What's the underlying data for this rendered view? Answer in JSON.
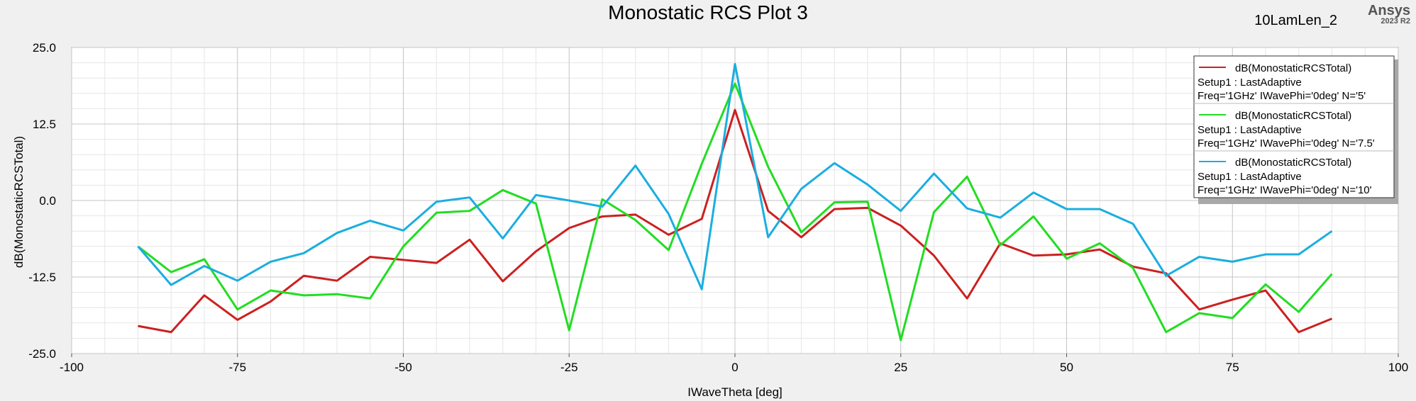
{
  "header": {
    "brand": "Ansys",
    "brand_version": "2023 R2",
    "design_name": "10LamLen_2"
  },
  "chart_data": {
    "type": "line",
    "title": "Monostatic RCS Plot 3",
    "xlabel": "IWaveTheta [deg]",
    "ylabel": "dB(MonostaticRCSTotal)",
    "xlim": [
      -100,
      100
    ],
    "ylim": [
      -25,
      25
    ],
    "x_ticks": [
      "-100",
      "-75",
      "-50",
      "-25",
      "0",
      "25",
      "50",
      "75",
      "100"
    ],
    "y_ticks": [
      "25.0",
      "12.5",
      "0.0",
      "-12.5",
      "-25.0"
    ],
    "grid": true,
    "legend_position": "top-right",
    "x": [
      -90,
      -85,
      -80,
      -75,
      -70,
      -65,
      -60,
      -55,
      -50,
      -45,
      -40,
      -35,
      -30,
      -25,
      -20,
      -15,
      -10,
      -5,
      0,
      5,
      10,
      15,
      20,
      25,
      30,
      35,
      40,
      45,
      50,
      55,
      60,
      65,
      70,
      75,
      80,
      85,
      90
    ],
    "series": [
      {
        "name": "dB(MonostaticRCSTotal)",
        "setup": "Setup1 : LastAdaptive",
        "params": "Freq='1GHz' IWavePhi='0deg' N='5'",
        "color": "#cc2020",
        "values": [
          -20.5,
          -21.5,
          -15.5,
          -19.5,
          -16.5,
          -12.3,
          -13.1,
          -9.2,
          -9.7,
          -10.2,
          -6.4,
          -13.2,
          -8.3,
          -4.5,
          -2.6,
          -2.3,
          -5.6,
          -3.0,
          14.8,
          -1.7,
          -6.0,
          -1.4,
          -1.2,
          -4.1,
          -9.0,
          -16.0,
          -7.0,
          -9.0,
          -8.8,
          -8.0,
          -10.8,
          -11.9,
          -17.8,
          -16.2,
          -14.7,
          -21.5,
          -19.3
        ]
      },
      {
        "name": "dB(MonostaticRCSTotal)",
        "setup": "Setup1 : LastAdaptive",
        "params": "Freq='1GHz' IWavePhi='0deg' N='7.5'",
        "color": "#22dd22",
        "values": [
          -7.5,
          -11.7,
          -9.6,
          -17.8,
          -14.7,
          -15.5,
          -15.3,
          -16.0,
          -7.5,
          -2.0,
          -1.7,
          1.7,
          -0.5,
          -21.2,
          0.2,
          -3.2,
          -8.1,
          6.0,
          19.1,
          5.5,
          -5.2,
          -0.3,
          -0.2,
          -22.8,
          -1.9,
          3.9,
          -7.3,
          -2.6,
          -9.5,
          -7.0,
          -11.0,
          -21.5,
          -18.4,
          -19.2,
          -13.7,
          -18.2,
          -12.0
        ]
      },
      {
        "name": "dB(MonostaticRCSTotal)",
        "setup": "Setup1 : LastAdaptive",
        "params": "Freq='1GHz' IWavePhi='0deg' N='10'",
        "color": "#1aaee0",
        "values": [
          -7.5,
          -13.8,
          -10.7,
          -13.1,
          -10.0,
          -8.6,
          -5.3,
          -3.3,
          -4.9,
          -0.2,
          0.5,
          -6.2,
          0.9,
          0.0,
          -1.0,
          5.7,
          -2.2,
          -14.5,
          22.3,
          -6.0,
          1.9,
          6.1,
          2.6,
          -1.7,
          4.4,
          -1.3,
          -2.8,
          1.3,
          -1.4,
          -1.4,
          -3.8,
          -12.3,
          -9.2,
          -10.0,
          -8.8,
          -8.8,
          -5.0
        ]
      }
    ]
  }
}
